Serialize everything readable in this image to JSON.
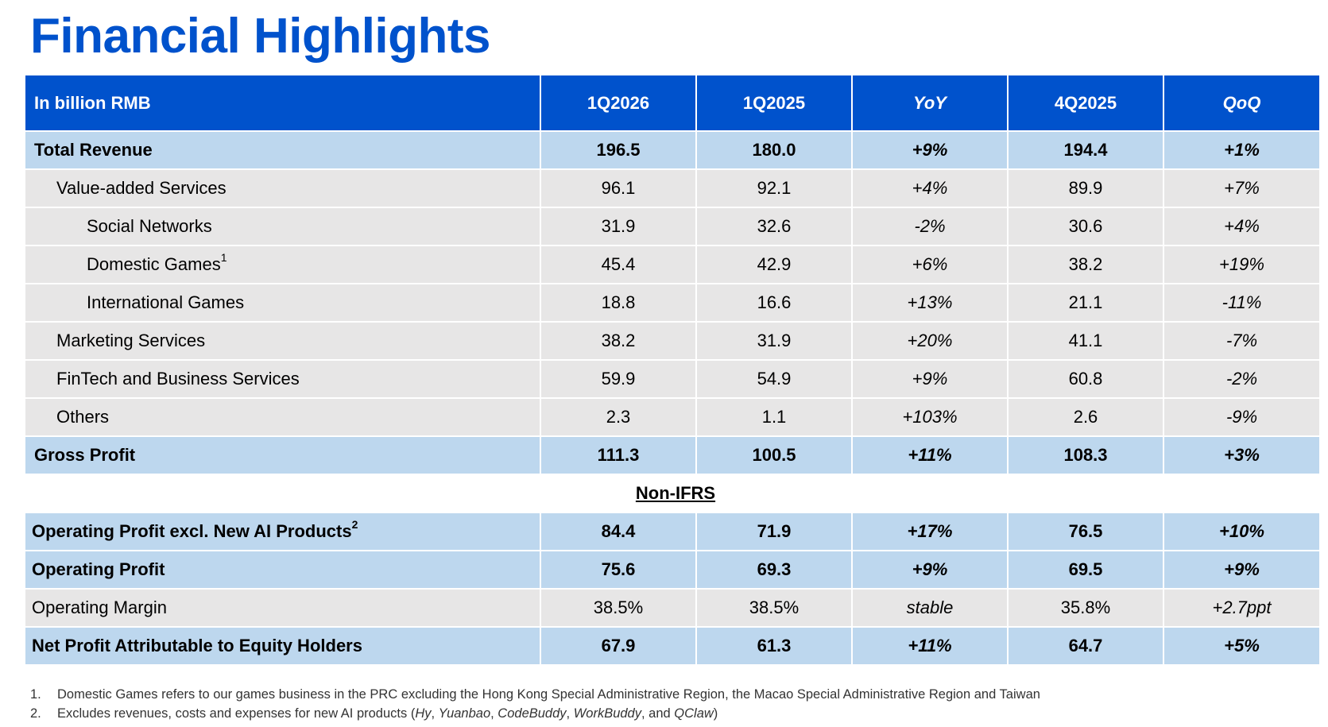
{
  "title": "Financial Highlights",
  "table": {
    "header": [
      "In billion RMB",
      "1Q2026",
      "1Q2025",
      "YoY",
      "4Q2025",
      "QoQ"
    ],
    "rows": {
      "total_revenue": {
        "label": "Total Revenue",
        "v": [
          "196.5",
          "180.0",
          "+9%",
          "194.4",
          "+1%"
        ]
      },
      "vas": {
        "label": "Value-added Services",
        "v": [
          "96.1",
          "92.1",
          "+4%",
          "89.9",
          "+7%"
        ]
      },
      "social": {
        "label": "Social Networks",
        "v": [
          "31.9",
          "32.6",
          "-2%",
          "30.6",
          "+4%"
        ]
      },
      "domestic": {
        "label": "Domestic Games",
        "sup": "1",
        "v": [
          "45.4",
          "42.9",
          "+6%",
          "38.2",
          "+19%"
        ]
      },
      "intl": {
        "label": "International Games",
        "v": [
          "18.8",
          "16.6",
          "+13%",
          "21.1",
          "-11%"
        ]
      },
      "marketing": {
        "label": "Marketing Services",
        "v": [
          "38.2",
          "31.9",
          "+20%",
          "41.1",
          "-7%"
        ]
      },
      "fintech": {
        "label": "FinTech and Business Services",
        "v": [
          "59.9",
          "54.9",
          "+9%",
          "60.8",
          "-2%"
        ]
      },
      "others": {
        "label": "Others",
        "v": [
          "2.3",
          "1.1",
          "+103%",
          "2.6",
          "-9%"
        ]
      },
      "gross": {
        "label": "Gross Profit",
        "v": [
          "111.3",
          "100.5",
          "+11%",
          "108.3",
          "+3%"
        ]
      },
      "opex_ai": {
        "label": "Operating Profit excl. New AI Products",
        "sup": "2",
        "v": [
          "84.4",
          "71.9",
          "+17%",
          "76.5",
          "+10%"
        ]
      },
      "op": {
        "label": "Operating Profit",
        "v": [
          "75.6",
          "69.3",
          "+9%",
          "69.5",
          "+9%"
        ]
      },
      "margin": {
        "label": "Operating Margin",
        "v": [
          "38.5%",
          "38.5%",
          "stable",
          "35.8%",
          "+2.7ppt"
        ]
      },
      "net": {
        "label": "Net Profit Attributable to Equity Holders",
        "v": [
          "67.9",
          "61.3",
          "+11%",
          "64.7",
          "+5%"
        ]
      }
    },
    "section_label": "Non-IFRS"
  },
  "footnotes": {
    "n1": {
      "num": "1.",
      "text": "Domestic Games refers to our games business in the PRC excluding the Hong Kong Special Administrative Region, the Macao Special Administrative Region and Taiwan"
    },
    "n2": {
      "num": "2.",
      "pre": "Excludes revenues, costs and expenses for new AI products (",
      "p1": "Hy",
      "s1": ", ",
      "p2": "Yuanbao",
      "s2": ", ",
      "p3": "CodeBuddy",
      "s3": ", ",
      "p4": "WorkBuddy",
      "s4": ", and ",
      "p5": "QClaw",
      "post": ")"
    }
  },
  "colors": {
    "brand_blue": "#0052CC",
    "highlight_row": "#BDD7EE",
    "grey_row": "#E7E6E6"
  }
}
